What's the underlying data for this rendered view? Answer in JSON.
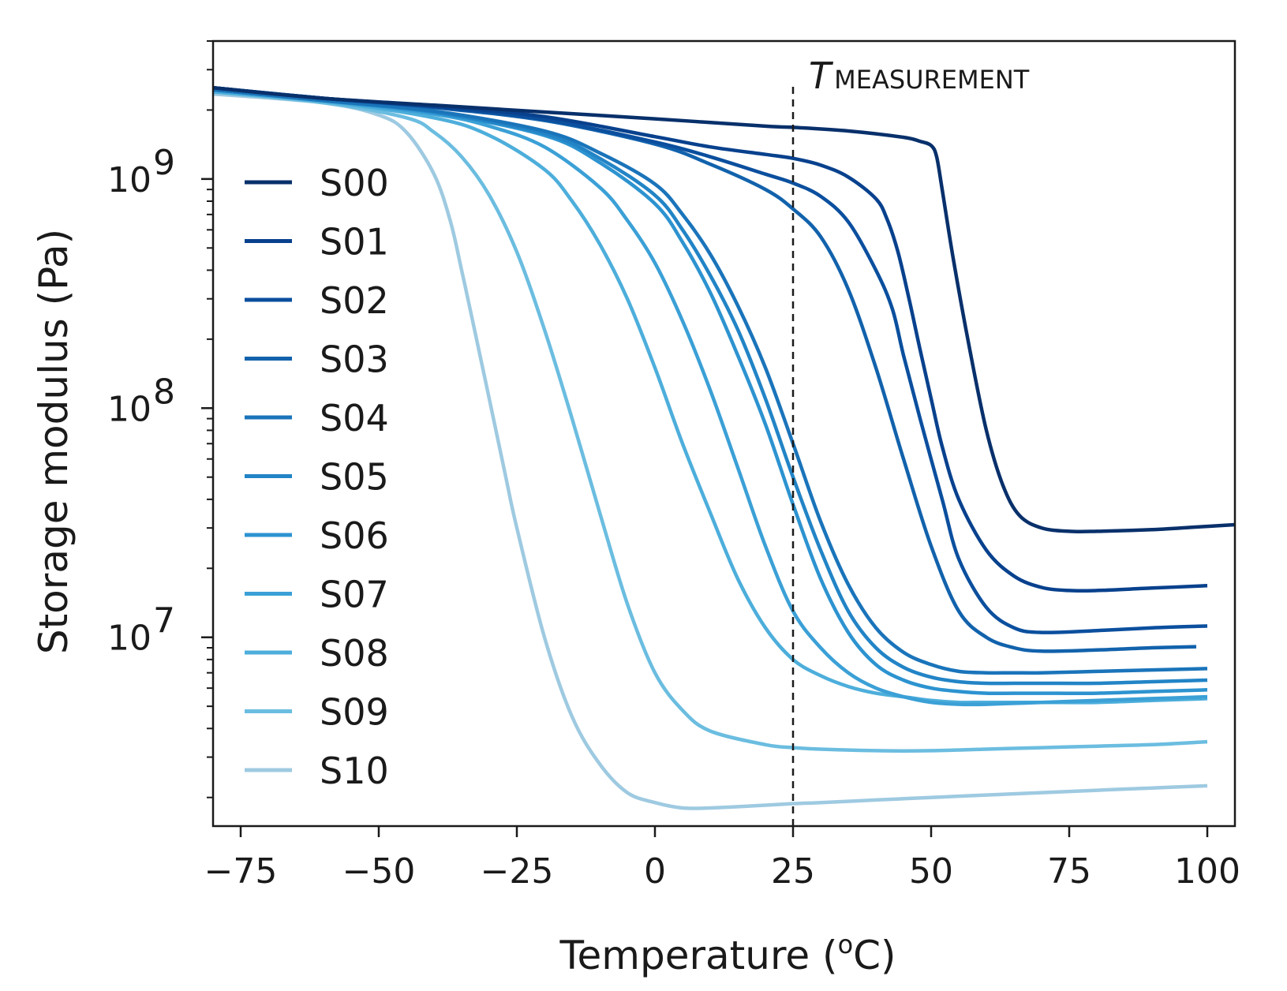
{
  "chart_data": {
    "type": "line",
    "title": "",
    "xlabel": "Temperature (°C)",
    "xlabel_prefix": "Temperature (",
    "xlabel_unit_sup": "o",
    "xlabel_suffix": "C)",
    "ylabel": "Storage modulus (Pa)",
    "xlim": [
      -80,
      105
    ],
    "ylim": [
      1500000,
      4000000000
    ],
    "yscale": "log",
    "x_ticks": [
      -75,
      -50,
      -25,
      0,
      25,
      50,
      75,
      100
    ],
    "x_tick_labels": [
      "−75",
      "−50",
      "−25",
      "0",
      "25",
      "50",
      "75",
      "100"
    ],
    "y_major_ticks": [
      {
        "value": 1000000000,
        "base": "10",
        "exp": "9"
      },
      {
        "value": 100000000,
        "base": "10",
        "exp": "8"
      },
      {
        "value": 10000000,
        "base": "10",
        "exp": "7"
      }
    ],
    "grid": false,
    "legend_position": "upper-left",
    "annotation": {
      "x": 25,
      "italic": "T",
      "subscript": "MEASUREMENT",
      "style": "dashed vertical line"
    },
    "series": [
      {
        "name": "S00",
        "color": "#08306b",
        "x": [
          -80,
          -60,
          -40,
          -20,
          0,
          20,
          25,
          35,
          45,
          48,
          50,
          51,
          52,
          54,
          57,
          60,
          63,
          66,
          70,
          75,
          80,
          90,
          100,
          105
        ],
        "y": [
          2500000000,
          2250000000,
          2100000000,
          1960000000,
          1830000000,
          1700000000,
          1680000000,
          1620000000,
          1520000000,
          1460000000,
          1400000000,
          1250000000,
          900000000,
          450000000,
          180000000,
          80000000,
          46000000,
          34000000,
          30000000,
          29000000,
          29000000,
          29500000,
          30500000,
          31000000
        ]
      },
      {
        "name": "S01",
        "color": "#08418d",
        "x": [
          -80,
          -60,
          -40,
          -20,
          0,
          10,
          20,
          25,
          30,
          35,
          40,
          42,
          44,
          46,
          48,
          50,
          52,
          55,
          60,
          65,
          70,
          75,
          80,
          90,
          100
        ],
        "y": [
          2500000000,
          2250000000,
          2080000000,
          1870000000,
          1530000000,
          1380000000,
          1280000000,
          1230000000,
          1150000000,
          1020000000,
          820000000,
          670000000,
          480000000,
          300000000,
          180000000,
          110000000,
          68000000,
          40000000,
          24000000,
          18500000,
          16500000,
          16000000,
          16000000,
          16400000,
          16800000
        ]
      },
      {
        "name": "S02",
        "color": "#0b4f9e",
        "x": [
          -80,
          -60,
          -40,
          -20,
          0,
          10,
          20,
          25,
          30,
          35,
          40,
          43,
          45,
          48,
          52,
          55,
          60,
          65,
          70,
          80,
          90,
          100
        ],
        "y": [
          2500000000,
          2250000000,
          2060000000,
          1820000000,
          1450000000,
          1250000000,
          1050000000,
          960000000,
          840000000,
          650000000,
          400000000,
          270000000,
          170000000,
          90000000,
          40000000,
          22000000,
          13500000,
          11000000,
          10500000,
          10700000,
          11000000,
          11200000
        ]
      },
      {
        "name": "S03",
        "color": "#1262ac",
        "x": [
          -80,
          -60,
          -40,
          -20,
          0,
          10,
          20,
          25,
          30,
          35,
          40,
          45,
          50,
          55,
          60,
          65,
          70,
          80,
          90,
          98
        ],
        "y": [
          2500000000,
          2250000000,
          2050000000,
          1800000000,
          1420000000,
          1160000000,
          900000000,
          740000000,
          560000000,
          330000000,
          150000000,
          60000000,
          25000000,
          13000000,
          10000000,
          9000000,
          8700000,
          8800000,
          9000000,
          9100000
        ]
      },
      {
        "name": "S04",
        "color": "#1a74ba",
        "x": [
          -80,
          -60,
          -40,
          -20,
          -10,
          0,
          5,
          10,
          15,
          20,
          25,
          30,
          35,
          40,
          45,
          50,
          55,
          60,
          65,
          70,
          80,
          90,
          100
        ],
        "y": [
          2450000000,
          2200000000,
          1980000000,
          1620000000,
          1300000000,
          950000000,
          700000000,
          470000000,
          280000000,
          150000000,
          70000000,
          32000000,
          17000000,
          11000000,
          8600000,
          7600000,
          7100000,
          7000000,
          7000000,
          7000000,
          7100000,
          7200000,
          7300000
        ]
      },
      {
        "name": "S05",
        "color": "#2284c6",
        "x": [
          -80,
          -60,
          -40,
          -20,
          -10,
          0,
          5,
          10,
          15,
          20,
          25,
          30,
          35,
          40,
          45,
          50,
          55,
          60,
          65,
          70,
          80,
          90,
          100
        ],
        "y": [
          2450000000,
          2200000000,
          1960000000,
          1580000000,
          1230000000,
          850000000,
          600000000,
          380000000,
          220000000,
          110000000,
          50000000,
          24000000,
          13000000,
          9000000,
          7400000,
          6700000,
          6400000,
          6300000,
          6300000,
          6300000,
          6300000,
          6400000,
          6500000
        ]
      },
      {
        "name": "S06",
        "color": "#2d93d0",
        "x": [
          -80,
          -60,
          -40,
          -20,
          -10,
          0,
          5,
          10,
          15,
          20,
          25,
          30,
          35,
          40,
          45,
          50,
          55,
          60,
          65,
          70,
          80,
          90,
          100
        ],
        "y": [
          2450000000,
          2200000000,
          1950000000,
          1550000000,
          1180000000,
          780000000,
          530000000,
          320000000,
          170000000,
          85000000,
          38000000,
          18000000,
          10500000,
          7600000,
          6500000,
          6000000,
          5800000,
          5700000,
          5700000,
          5700000,
          5700000,
          5800000,
          5900000
        ]
      },
      {
        "name": "S07",
        "color": "#3ba0d6",
        "x": [
          -80,
          -60,
          -40,
          -30,
          -20,
          -10,
          -5,
          0,
          5,
          10,
          15,
          20,
          25,
          30,
          35,
          40,
          45,
          50,
          55,
          60,
          70,
          80,
          90,
          100
        ],
        "y": [
          2450000000,
          2200000000,
          1920000000,
          1700000000,
          1380000000,
          920000000,
          660000000,
          430000000,
          240000000,
          120000000,
          55000000,
          25000000,
          13000000,
          9000000,
          7000000,
          6000000,
          5500000,
          5200000,
          5100000,
          5100000,
          5200000,
          5300000,
          5400000,
          5500000
        ]
      },
      {
        "name": "S08",
        "color": "#4daedb",
        "x": [
          -80,
          -60,
          -40,
          -30,
          -20,
          -15,
          -10,
          -5,
          0,
          5,
          10,
          15,
          20,
          25,
          30,
          35,
          40,
          45,
          50,
          55,
          60,
          70,
          80,
          90,
          100
        ],
        "y": [
          2400000000,
          2180000000,
          1850000000,
          1550000000,
          1100000000,
          800000000,
          520000000,
          300000000,
          150000000,
          70000000,
          35000000,
          18000000,
          11000000,
          8000000,
          6800000,
          6100000,
          5700000,
          5500000,
          5300000,
          5200000,
          5200000,
          5200000,
          5200000,
          5300000,
          5400000
        ]
      },
      {
        "name": "S09",
        "color": "#6bbde0",
        "x": [
          -80,
          -60,
          -45,
          -40,
          -35,
          -30,
          -25,
          -20,
          -15,
          -10,
          -5,
          0,
          5,
          10,
          20,
          25,
          30,
          40,
          50,
          60,
          70,
          80,
          90,
          100
        ],
        "y": [
          2400000000,
          2150000000,
          1850000000,
          1600000000,
          1250000000,
          850000000,
          480000000,
          220000000,
          90000000,
          35000000,
          14000000,
          7000000,
          4800000,
          3900000,
          3400000,
          3300000,
          3250000,
          3200000,
          3200000,
          3250000,
          3300000,
          3350000,
          3400000,
          3500000
        ]
      },
      {
        "name": "S10",
        "color": "#9ecae1",
        "x": [
          -80,
          -60,
          -50,
          -45,
          -40,
          -37,
          -35,
          -33,
          -30,
          -27,
          -25,
          -20,
          -15,
          -10,
          -5,
          0,
          5,
          10,
          20,
          25,
          30,
          40,
          50,
          60,
          70,
          80,
          90,
          100
        ],
        "y": [
          2350000000,
          2150000000,
          1900000000,
          1600000000,
          1050000000,
          650000000,
          400000000,
          240000000,
          110000000,
          50000000,
          30000000,
          10000000,
          4500000,
          2800000,
          2100000,
          1900000,
          1800000,
          1800000,
          1850000,
          1880000,
          1900000,
          1950000,
          2000000,
          2050000,
          2100000,
          2150000,
          2200000,
          2250000
        ]
      }
    ]
  }
}
